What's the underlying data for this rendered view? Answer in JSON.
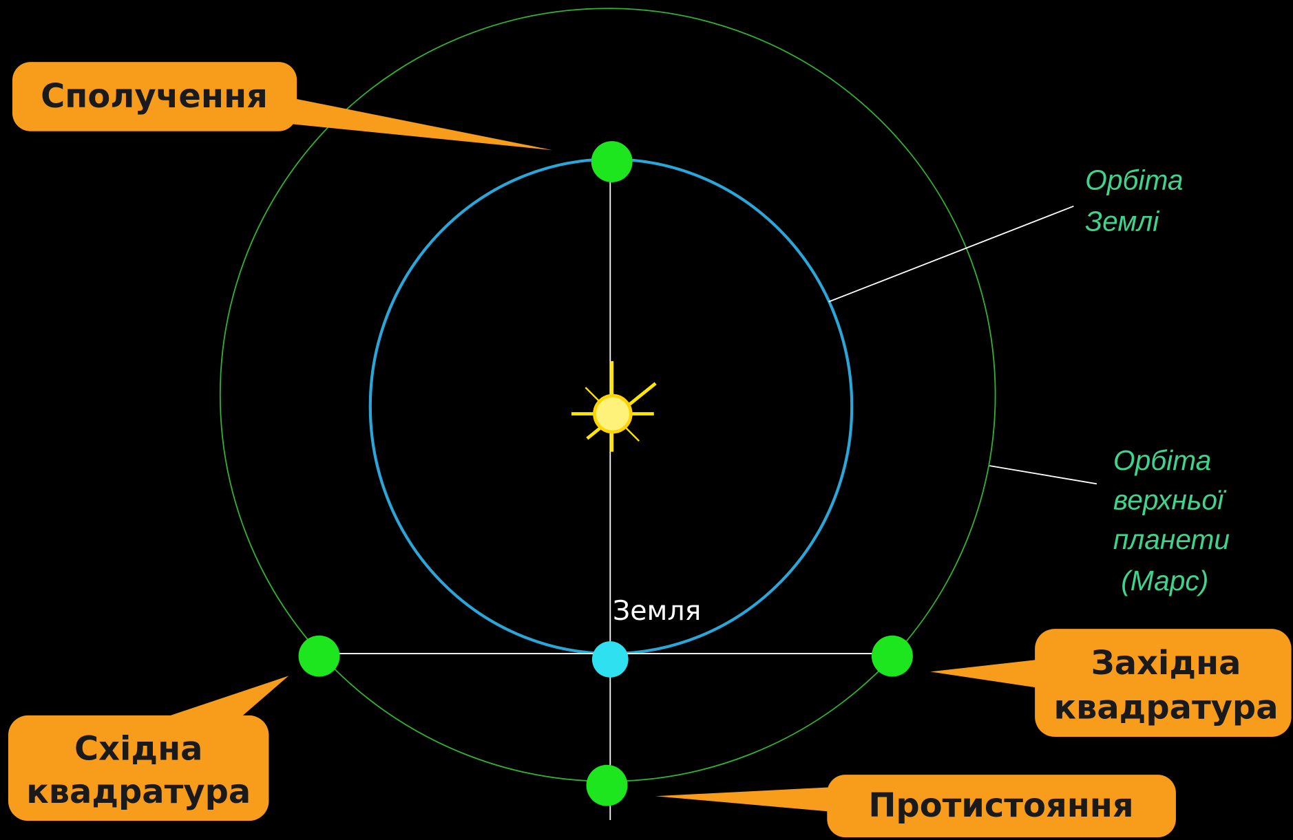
{
  "callouts": {
    "conjunction": [
      "Сполучення"
    ],
    "eastern_quadrature": [
      "Східна",
      "квадратура"
    ],
    "western_quadrature": [
      "Західна",
      "квадратура"
    ],
    "opposition": [
      "Протистояння"
    ]
  },
  "orbit_labels": {
    "earth_orbit": [
      "Орбіта",
      "Землі"
    ],
    "outer_planet_orbit": [
      "Орбіта",
      "верхньої",
      "планети",
      " (Марс)"
    ]
  },
  "earth_label": "Земля"
}
